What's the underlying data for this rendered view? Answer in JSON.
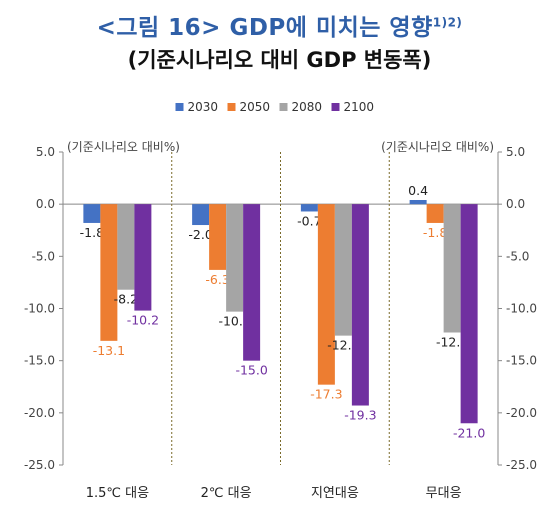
{
  "title": "<그림 16> GDP에 미치는 영향",
  "title_sup": "1)2)",
  "subtitle": "(기준시나리오 대비 GDP 변동폭)",
  "chart_data": {
    "type": "bar",
    "categories": [
      "1.5℃ 대응",
      "2℃ 대응",
      "지연대응",
      "무대응"
    ],
    "series": [
      {
        "name": "2030",
        "color": "#4472c4",
        "values": [
          -1.8,
          -2.0,
          -0.7,
          0.4
        ],
        "labels": [
          "-1.8",
          "-2.0",
          "-0.7",
          "0.4"
        ],
        "label_color": "#222222"
      },
      {
        "name": "2050",
        "color": "#ed7d31",
        "values": [
          -13.1,
          -6.3,
          -17.3,
          -1.8
        ],
        "labels": [
          "-13.1",
          "-6.3",
          "-17.3",
          "-1.8"
        ],
        "label_color": "#ed7d31"
      },
      {
        "name": "2080",
        "color": "#a5a5a5",
        "values": [
          -8.2,
          -10.3,
          -12.6,
          -12.3
        ],
        "labels": [
          "-8.2",
          "-10.3",
          "-12.6",
          "-12.3"
        ],
        "label_color": "#222222"
      },
      {
        "name": "2100",
        "color": "#7030a0",
        "values": [
          -10.2,
          -15.0,
          -19.3,
          -21.0
        ],
        "labels": [
          "-10.2",
          "-15.0",
          "-19.3",
          "-21.0"
        ],
        "label_color": "#7030a0"
      }
    ],
    "ylim": [
      -25,
      5
    ],
    "yticks": [
      "5.0",
      "0.0",
      "-5.0",
      "-10.0",
      "-15.0",
      "-20.0",
      "-25.0"
    ],
    "ylabel_left": "(기준시나리오 대비%)",
    "ylabel_right": "(기준시나리오 대비%)",
    "legend_position": "top-center",
    "category_separators": "dotted"
  }
}
